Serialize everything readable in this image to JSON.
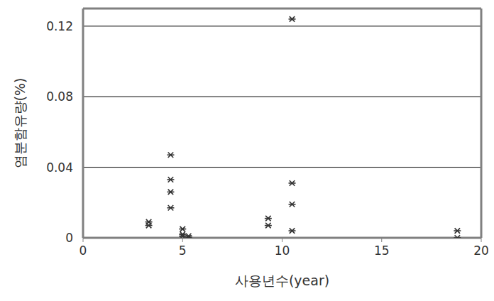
{
  "chart_data": {
    "type": "scatter",
    "x_label": "사용년수(year)",
    "y_label": "염분함유량(%)",
    "x": [
      3.3,
      3.3,
      4.4,
      4.4,
      4.4,
      4.4,
      5.0,
      5.0,
      5.0,
      5.3,
      5.3,
      9.3,
      9.3,
      10.5,
      10.5,
      10.5,
      10.5,
      18.8,
      18.8
    ],
    "values": [
      0.009,
      0.007,
      0.047,
      0.033,
      0.026,
      0.017,
      0.005,
      0.002,
      0.001,
      0.001,
      0,
      0.011,
      0.007,
      0.124,
      0.031,
      0.019,
      0.004,
      0.004,
      0
    ],
    "color": "#333333",
    "marker": "asterisk",
    "xlim": [
      0,
      20
    ],
    "xticks": [
      0,
      5,
      10,
      15,
      20
    ],
    "ylim": [
      0,
      0.13
    ],
    "yticks": [
      0,
      0.04,
      0.08,
      0.12
    ],
    "grid": true
  }
}
